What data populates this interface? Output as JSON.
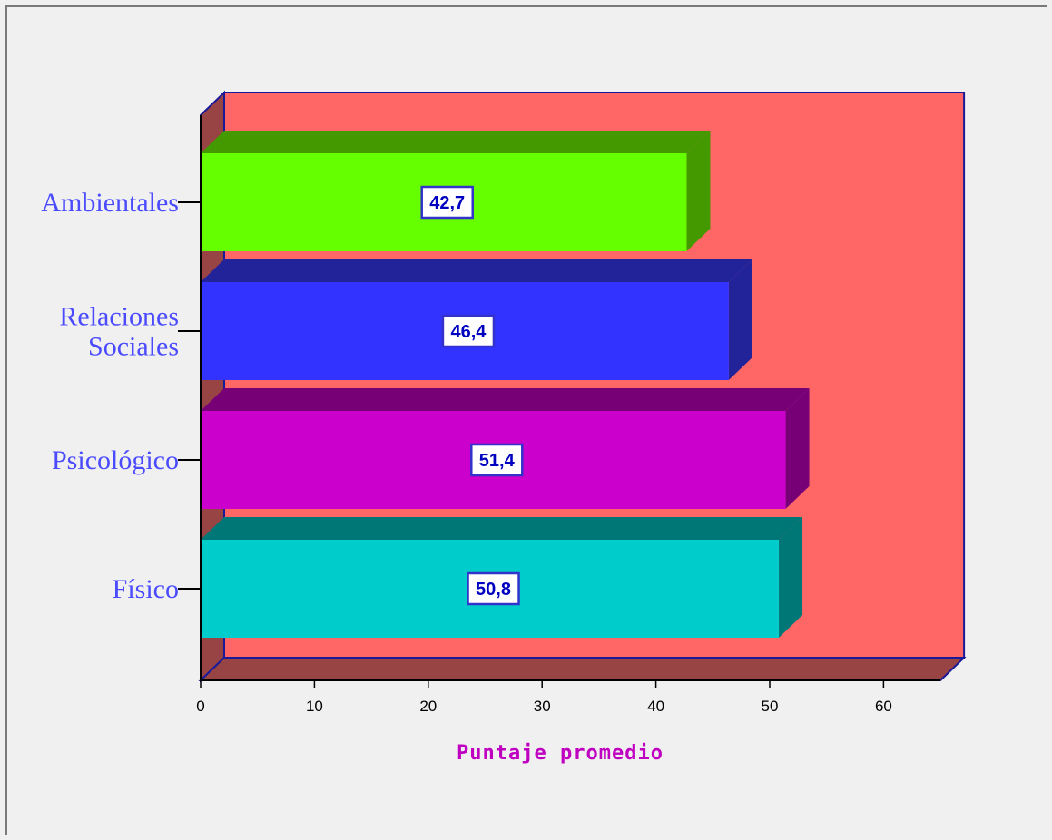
{
  "chart_data": {
    "type": "bar",
    "orientation": "horizontal",
    "categories": [
      "Ambientales",
      "Relaciones Sociales",
      "Psicológico",
      "Físico"
    ],
    "category_lines": [
      [
        "Ambientales"
      ],
      [
        "Relaciones",
        "Sociales"
      ],
      [
        "Psicológico"
      ],
      [
        "Físico"
      ]
    ],
    "values": [
      42.7,
      46.4,
      51.4,
      50.8
    ],
    "value_labels": [
      "42,7",
      "46,4",
      "51,4",
      "50,8"
    ],
    "xlabel": "Puntaje promedio",
    "ylabel": "",
    "xlim": [
      0,
      65
    ],
    "xticks": [
      0,
      10,
      20,
      30,
      40,
      50,
      60
    ],
    "grid": false,
    "style": "3d",
    "colors": {
      "bar_fronts": [
        "#66ff00",
        "#3333ff",
        "#cc00cc",
        "#00cccc"
      ],
      "bar_tops": [
        "#449900",
        "#222299",
        "#770077",
        "#007777"
      ],
      "wall": "#ff6666",
      "floor": "#994444",
      "frame_line": "#1a1a99",
      "category_text": "#4a4aff",
      "axis_title_text": "#c000c0",
      "value_text": "#0000c0"
    }
  }
}
